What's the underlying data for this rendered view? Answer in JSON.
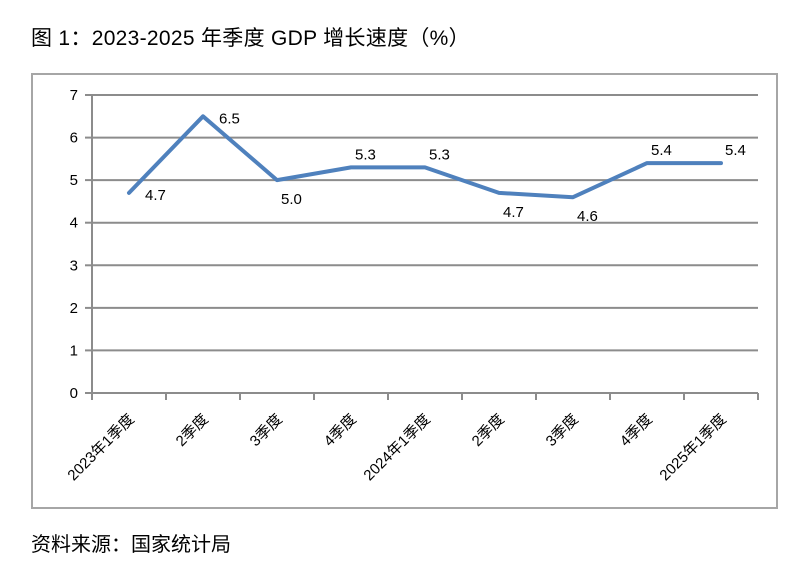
{
  "figure": {
    "title": "图 1：2023-2025 年季度 GDP 增长速度（%）",
    "source": "资料来源：国家统计局"
  },
  "colors": {
    "line": "#4F81BD",
    "grid": "#8C8C8C",
    "axis": "#8C8C8C",
    "border": "#A6A6A6",
    "text": "#000000",
    "background": "#FFFFFF"
  },
  "chart_data": {
    "type": "line",
    "title": "图 1：2023-2025 年季度 GDP 增长速度（%）",
    "source_note": "资料来源：国家统计局",
    "categories": [
      "2023年1季度",
      "2季度",
      "3季度",
      "4季度",
      "2024年1季度",
      "2季度",
      "3季度",
      "4季度",
      "2025年1季度"
    ],
    "values": [
      4.7,
      6.5,
      5.0,
      5.3,
      5.3,
      4.7,
      4.6,
      5.4,
      5.4
    ],
    "data_labels": [
      "4.7",
      "6.5",
      "5.0",
      "5.3",
      "5.3",
      "4.7",
      "4.6",
      "5.4",
      "5.4"
    ],
    "data_label_positions": [
      "right",
      "right",
      "below",
      "above",
      "above",
      "below",
      "below",
      "above",
      "above"
    ],
    "xlabel": "",
    "ylabel": "",
    "ylim": [
      0,
      7
    ],
    "yticks": [
      0,
      1,
      2,
      3,
      4,
      5,
      6,
      7
    ],
    "grid": true,
    "legend": false,
    "markers": false,
    "x_tick_rotation": 45
  }
}
